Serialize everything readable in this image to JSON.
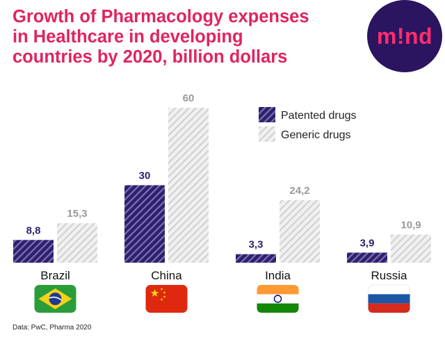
{
  "title_lines": [
    "Growth of Pharmacology expenses",
    "in Healthcare in developing",
    "countries by 2020, billion dollars"
  ],
  "logo_text": "m!nd",
  "source": "Data: PwC, Pharma 2020",
  "colors": {
    "title": "#e0245e",
    "logo_bg": "#2b1460",
    "logo_text": "#ff2e6e",
    "patented": "#2e1f6e",
    "generic": "#dcdcdc",
    "patented_label": "#2e1f6e",
    "generic_label": "#9a9a9a"
  },
  "chart_data": {
    "type": "bar",
    "categories": [
      "Brazil",
      "China",
      "India",
      "Russia"
    ],
    "series": [
      {
        "name": "Patented drugs",
        "values": [
          8.8,
          30,
          3.3,
          3.9
        ],
        "labels": [
          "8,8",
          "30",
          "3,3",
          "3,9"
        ],
        "color": "#2e1f6e",
        "pattern": "dense-diagonal-stripes"
      },
      {
        "name": "Generic drugs",
        "values": [
          15.3,
          60,
          24.2,
          10.9
        ],
        "labels": [
          "15,3",
          "60",
          "24,2",
          "10,9"
        ],
        "color": "#dcdcdc",
        "pattern": "light-diagonal-stripes"
      }
    ],
    "ylim": [
      0,
      60
    ],
    "grid": false,
    "legend": "top-right",
    "flags": [
      "brazil-flag",
      "china-flag",
      "india-flag",
      "russia-flag"
    ]
  }
}
